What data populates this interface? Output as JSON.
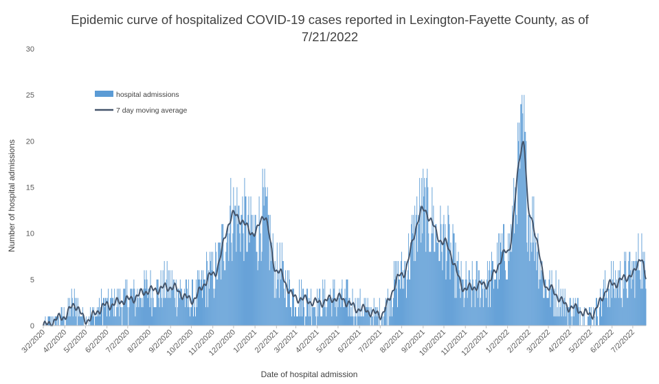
{
  "chart_data": {
    "type": "bar",
    "title": "Epidemic curve of hospitalized COVID-19 cases reported in Lexington-Fayette County, as of 7/21/2022",
    "xlabel": "Date of hospital admission",
    "ylabel": "Number of hospital admissions",
    "ylim": [
      0,
      30
    ],
    "y_ticks": [
      "0",
      "5",
      "10",
      "15",
      "20",
      "25",
      "30"
    ],
    "x_range": [
      "2020-03-02",
      "2022-07-21"
    ],
    "x_tick_labels": [
      "3/2/2020",
      "4/2/2020",
      "5/2/2020",
      "6/2/2020",
      "7/2/2020",
      "8/2/2020",
      "9/2/2020",
      "10/2/2020",
      "11/2/2020",
      "12/2/2020",
      "1/2/2021",
      "2/2/2021",
      "3/2/2021",
      "4/2/2021",
      "5/2/2021",
      "6/2/2021",
      "7/2/2021",
      "8/2/2021",
      "9/2/2021",
      "10/2/2021",
      "11/2/2021",
      "12/2/2021",
      "1/2/2022",
      "2/2/2022",
      "3/2/2022",
      "4/2/2022",
      "5/2/2022",
      "6/2/2022",
      "7/2/2022"
    ],
    "grid": false,
    "legend_position": "top-left",
    "series": [
      {
        "name": "hospital admissions",
        "kind": "bar",
        "color": "#5B9BD5"
      },
      {
        "name": "7 day moving average",
        "kind": "line",
        "color": "#44546A"
      }
    ],
    "moving_average_monthly": [
      {
        "x": "2020-03-02",
        "y": 0
      },
      {
        "x": "2020-04-02",
        "y": 1
      },
      {
        "x": "2020-04-16",
        "y": 2.3
      },
      {
        "x": "2020-05-02",
        "y": 0.6
      },
      {
        "x": "2020-06-02",
        "y": 2.2
      },
      {
        "x": "2020-07-02",
        "y": 2.8
      },
      {
        "x": "2020-08-02",
        "y": 3.8
      },
      {
        "x": "2020-09-02",
        "y": 4.2
      },
      {
        "x": "2020-10-02",
        "y": 2.8
      },
      {
        "x": "2020-11-02",
        "y": 5.5
      },
      {
        "x": "2020-12-02",
        "y": 12
      },
      {
        "x": "2021-01-02",
        "y": 10
      },
      {
        "x": "2021-01-15",
        "y": 12
      },
      {
        "x": "2021-02-02",
        "y": 6
      },
      {
        "x": "2021-03-02",
        "y": 3
      },
      {
        "x": "2021-04-02",
        "y": 2.5
      },
      {
        "x": "2021-05-02",
        "y": 3
      },
      {
        "x": "2021-06-02",
        "y": 1.8
      },
      {
        "x": "2021-07-02",
        "y": 1.2
      },
      {
        "x": "2021-08-02",
        "y": 5.5
      },
      {
        "x": "2021-09-02",
        "y": 12.5
      },
      {
        "x": "2021-10-02",
        "y": 9
      },
      {
        "x": "2021-11-02",
        "y": 4
      },
      {
        "x": "2021-12-02",
        "y": 4.5
      },
      {
        "x": "2022-01-02",
        "y": 8
      },
      {
        "x": "2022-01-25",
        "y": 20
      },
      {
        "x": "2022-02-02",
        "y": 12
      },
      {
        "x": "2022-03-02",
        "y": 4
      },
      {
        "x": "2022-04-02",
        "y": 2
      },
      {
        "x": "2022-05-02",
        "y": 1.2
      },
      {
        "x": "2022-06-02",
        "y": 4.5
      },
      {
        "x": "2022-07-02",
        "y": 5.5
      },
      {
        "x": "2022-07-14",
        "y": 7.5
      },
      {
        "x": "2022-07-21",
        "y": 5
      }
    ]
  },
  "legend": {
    "bar_label": "hospital admissions",
    "line_label": "7 day moving average"
  },
  "colors": {
    "bar": "#5B9BD5",
    "line": "#44546A",
    "axis": "#BFBFBF"
  }
}
